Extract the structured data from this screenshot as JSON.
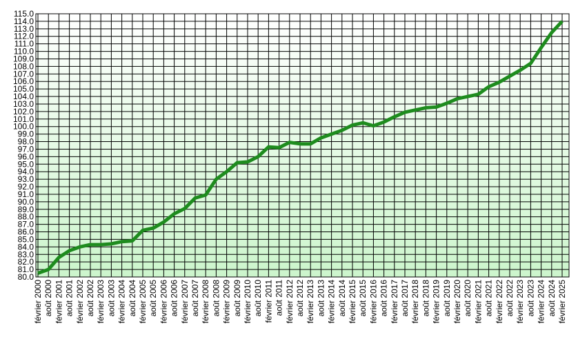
{
  "chart_data": {
    "type": "line",
    "categories": [
      "février 2000",
      "août 2000",
      "février 2001",
      "août 2001",
      "février 2002",
      "août 2002",
      "février 2003",
      "août 2003",
      "février 2004",
      "août 2004",
      "février 2005",
      "août 2005",
      "février 2006",
      "août 2006",
      "février 2007",
      "août 2007",
      "février 2008",
      "août 2008",
      "février 2009",
      "août 2009",
      "février 2010",
      "août 2010",
      "février 2011",
      "août 2011",
      "février 2012",
      "août 2012",
      "février 2013",
      "août 2013",
      "février 2014",
      "août 2014",
      "février 2015",
      "août 2015",
      "février 2016",
      "août 2016",
      "février 2017",
      "août 2017",
      "février 2018",
      "août 2018",
      "février 2019",
      "août 2019",
      "février 2020",
      "août 2020",
      "février 2021",
      "août 2021",
      "février 2022",
      "août 2022",
      "février 2023",
      "août 2023",
      "février 2024",
      "août 2024",
      "février 2025"
    ],
    "series": [
      {
        "color": "#1e8c1e",
        "values": [
          80.5,
          81.0,
          82.6,
          83.5,
          84.0,
          84.3,
          84.3,
          84.4,
          84.7,
          84.8,
          86.2,
          86.5,
          87.3,
          88.4,
          89.1,
          90.5,
          90.9,
          93.0,
          94.0,
          95.2,
          95.3,
          96.0,
          97.3,
          97.2,
          97.9,
          97.7,
          97.7,
          98.5,
          99.0,
          99.5,
          100.2,
          100.5,
          100.1,
          100.6,
          101.3,
          101.9,
          102.2,
          102.5,
          102.6,
          103.1,
          103.7,
          104.0,
          104.3,
          105.3,
          105.9,
          106.7,
          107.5,
          108.4,
          110.5,
          112.5,
          114.0
        ]
      }
    ],
    "ylim": [
      80,
      115
    ],
    "yticks": [
      {
        "value": 80,
        "label": "80.0"
      },
      {
        "value": 81,
        "label": "81.0"
      },
      {
        "value": 82,
        "label": "82.0"
      },
      {
        "value": 83,
        "label": "83.0"
      },
      {
        "value": 84,
        "label": "84.0"
      },
      {
        "value": 85,
        "label": "85.0"
      },
      {
        "value": 86,
        "label": "86.0"
      },
      {
        "value": 87,
        "label": "87.0"
      },
      {
        "value": 88,
        "label": "88.0"
      },
      {
        "value": 89,
        "label": "89.0"
      },
      {
        "value": 90,
        "label": "90.0"
      },
      {
        "value": 91,
        "label": "91.0"
      },
      {
        "value": 92,
        "label": "92.0"
      },
      {
        "value": 93,
        "label": "93.0"
      },
      {
        "value": 94,
        "label": "94.0"
      },
      {
        "value": 95,
        "label": "95.0"
      },
      {
        "value": 96,
        "label": "96.0"
      },
      {
        "value": 97,
        "label": "97.0"
      },
      {
        "value": 98,
        "label": "98.0"
      },
      {
        "value": 99,
        "label": "99.0"
      },
      {
        "value": 100,
        "label": "100.0"
      },
      {
        "value": 101,
        "label": "101.0"
      },
      {
        "value": 102,
        "label": "102.0"
      },
      {
        "value": 103,
        "label": "103.0"
      },
      {
        "value": 104,
        "label": "104.0"
      },
      {
        "value": 105,
        "label": "105.0"
      },
      {
        "value": 106,
        "label": "106.0"
      },
      {
        "value": 107,
        "label": "107.0"
      },
      {
        "value": 108,
        "label": "108.0"
      },
      {
        "value": 109,
        "label": "109.0"
      },
      {
        "value": 110,
        "label": "110.0"
      },
      {
        "value": 111,
        "label": "111.0"
      },
      {
        "value": 112,
        "label": "112.0"
      },
      {
        "value": 113,
        "label": "113.0"
      },
      {
        "value": 114,
        "label": "114.0"
      },
      {
        "value": 115,
        "label": "115.0"
      }
    ],
    "grid": true
  }
}
